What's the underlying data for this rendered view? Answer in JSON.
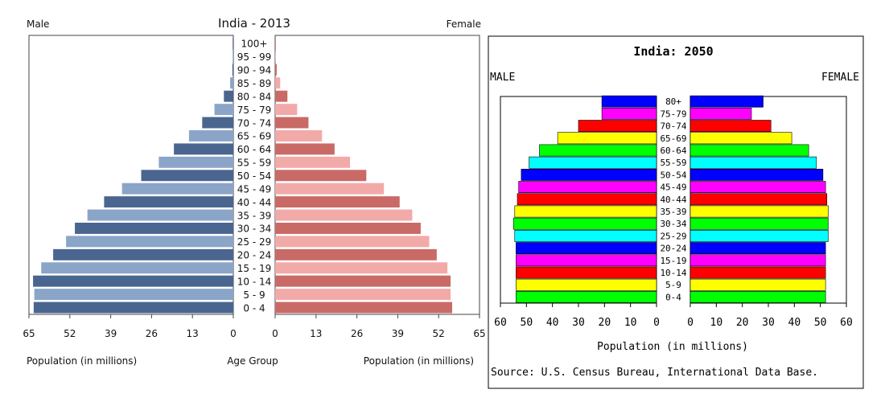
{
  "chart_data": [
    {
      "type": "bar",
      "orientation": "horizontal-pyramid",
      "title": "India - 2013",
      "left_label": "Male",
      "right_label": "Female",
      "xlabel_left": "Population (in millions)",
      "xlabel_center": "Age Group",
      "xlabel_right": "Population (in millions)",
      "xlim": [
        0,
        65
      ],
      "ticks": [
        0,
        13,
        26,
        39,
        52,
        65
      ],
      "categories": [
        "0 - 4",
        "5 - 9",
        "10 - 14",
        "15 - 19",
        "20 - 24",
        "25 - 29",
        "30 - 34",
        "35 - 39",
        "40 - 44",
        "45 - 49",
        "50 - 54",
        "55 - 59",
        "60 - 64",
        "65 - 69",
        "70 - 74",
        "75 - 79",
        "80 - 84",
        "85 - 89",
        "90 - 94",
        "95 - 99",
        "100+"
      ],
      "series": [
        {
          "name": "Male",
          "values": [
            63.5,
            63.3,
            63.7,
            61.1,
            57.3,
            53.2,
            50.4,
            46.4,
            41.1,
            35.4,
            29.3,
            23.7,
            18.9,
            14.1,
            9.9,
            6.0,
            3.0,
            1.0,
            0.3,
            0.1,
            0.02
          ]
        },
        {
          "name": "Female",
          "values": [
            56.3,
            55.8,
            55.8,
            54.8,
            51.4,
            49.0,
            46.3,
            43.6,
            39.6,
            34.6,
            29.0,
            23.8,
            18.9,
            14.9,
            10.6,
            7.0,
            3.9,
            1.6,
            0.5,
            0.1,
            0.03
          ]
        }
      ],
      "colors": {
        "male_dark": "#4a6690",
        "male_light": "#8aa5c8",
        "female_dark": "#c96a66",
        "female_light": "#f2aaa8"
      }
    },
    {
      "type": "bar",
      "orientation": "horizontal-pyramid",
      "title": "India: 2050",
      "left_label": "MALE",
      "right_label": "FEMALE",
      "xlabel": "Population (in millions)",
      "source": "Source: U.S. Census Bureau, International Data Base.",
      "xlim": [
        0,
        60
      ],
      "ticks": [
        0,
        10,
        20,
        30,
        40,
        50,
        60
      ],
      "categories": [
        "0-4",
        "5-9",
        "10-14",
        "15-19",
        "20-24",
        "25-29",
        "30-34",
        "35-39",
        "40-44",
        "45-49",
        "50-54",
        "55-59",
        "60-64",
        "65-69",
        "70-74",
        "75-79",
        "80+"
      ],
      "series": [
        {
          "name": "MALE",
          "values": [
            54,
            54,
            54,
            54,
            54,
            54.5,
            55,
            54.5,
            53.5,
            53,
            52,
            49,
            45,
            38,
            30,
            21,
            21
          ]
        },
        {
          "name": "FEMALE",
          "values": [
            52,
            52,
            52,
            52,
            52,
            53,
            53,
            53,
            52.5,
            52,
            51,
            48.5,
            45.5,
            39,
            31,
            23.5,
            28
          ]
        }
      ],
      "colors": [
        "#00ff00",
        "#ffff00",
        "#ff0000",
        "#ff00ff",
        "#0000ff",
        "#00ffff"
      ]
    }
  ]
}
